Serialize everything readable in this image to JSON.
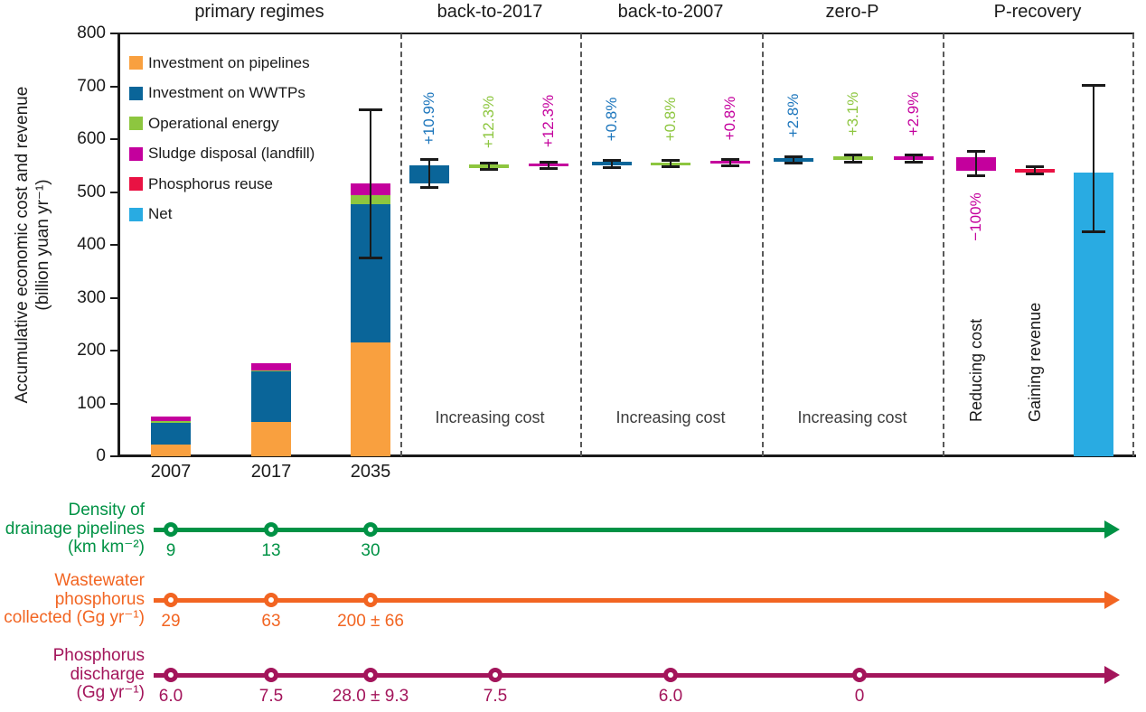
{
  "figure": {
    "y_axis": {
      "title_line1": "Accumulative economic cost and revenue",
      "title_line2": "(billion yuan yr⁻¹)",
      "tick_values": [
        0,
        100,
        200,
        300,
        400,
        500,
        600,
        700,
        800
      ],
      "range": [
        0,
        800
      ]
    },
    "legend": [
      {
        "label": "Investment on pipelines",
        "color": "#F9A03F"
      },
      {
        "label": "Investment on WWTPs",
        "color": "#0A6599"
      },
      {
        "label": "Operational energy",
        "color": "#8DC63F"
      },
      {
        "label": "Sludge disposal (landfill)",
        "color": "#C4009D"
      },
      {
        "label": "Phosphorus reuse",
        "color": "#E91243"
      },
      {
        "label": "Net",
        "color": "#29ABE2"
      }
    ],
    "text_color": "#1a1a1a",
    "note_color": "#3d3d3d",
    "separator_color": "#595959"
  },
  "chart_data": {
    "type": "bar",
    "unit": "billion yuan yr⁻¹",
    "panels": [
      "primary regimes",
      "back-to-2017",
      "back-to-2007",
      "zero-P",
      "P-recovery"
    ],
    "primary_regimes": {
      "title": "primary regimes",
      "categories": [
        "2007",
        "2017",
        "2035"
      ],
      "series": [
        {
          "name": "Investment on pipelines",
          "values": [
            22,
            65,
            215
          ]
        },
        {
          "name": "Investment on WWTPs",
          "values": [
            41,
            95,
            262
          ]
        },
        {
          "name": "Operational energy",
          "values": [
            3,
            2,
            17
          ]
        },
        {
          "name": "Sludge disposal (landfill)",
          "values": [
            10,
            14,
            22
          ]
        }
      ],
      "totals": [
        76,
        176,
        516
      ],
      "error_2035": [
        375,
        656
      ]
    },
    "scenarios": [
      {
        "title": "back-to-2017",
        "note": "Increasing cost",
        "bars": [
          {
            "series": "Investment on WWTPs",
            "change": "+10.9%",
            "label_color": "#1B75BC",
            "range": [
              517,
              551
            ],
            "error": [
              508,
              563
            ]
          },
          {
            "series": "Operational energy",
            "change": "+12.3%",
            "label_color": "#8DC63F",
            "range": [
              546,
              552
            ],
            "error": [
              542,
              556
            ]
          },
          {
            "series": "Sludge disposal (landfill)",
            "change": "+12.3%",
            "label_color": "#C4009D",
            "range": [
              548,
              554
            ],
            "error": [
              544,
              558
            ]
          }
        ]
      },
      {
        "title": "back-to-2007",
        "note": "Increasing cost",
        "bars": [
          {
            "series": "Investment on WWTPs",
            "change": "+0.8%",
            "label_color": "#1B75BC",
            "range": [
              550,
              557
            ],
            "error": [
              546,
              561
            ]
          },
          {
            "series": "Operational energy",
            "change": "+0.8%",
            "label_color": "#8DC63F",
            "range": [
              550,
              556
            ],
            "error": [
              547,
              560
            ]
          },
          {
            "series": "Sludge disposal (landfill)",
            "change": "+0.8%",
            "label_color": "#C4009D",
            "range": [
              553,
              559
            ],
            "error": [
              549,
              563
            ]
          }
        ]
      },
      {
        "title": "zero-P",
        "note": "Increasing cost",
        "bars": [
          {
            "series": "Investment on WWTPs",
            "change": "+2.8%",
            "label_color": "#1B75BC",
            "range": [
              557,
              564
            ],
            "error": [
              553,
              568
            ]
          },
          {
            "series": "Operational energy",
            "change": "+3.1%",
            "label_color": "#8DC63F",
            "range": [
              560,
              567
            ],
            "error": [
              556,
              571
            ]
          },
          {
            "series": "Sludge disposal (landfill)",
            "change": "+2.9%",
            "label_color": "#C4009D",
            "range": [
              560,
              567
            ],
            "error": [
              556,
              571
            ]
          }
        ]
      },
      {
        "title": "P-recovery",
        "bars": [
          {
            "series": "Sludge disposal (landfill)",
            "change": "−100%",
            "change_below": true,
            "label_color": "#C4009D",
            "bottom_note": "Reducing cost",
            "range": [
              540,
              566
            ],
            "error": [
              530,
              577
            ]
          },
          {
            "series": "Phosphorus reuse",
            "bottom_note": "Gaining revenue",
            "range": [
              537,
              544
            ],
            "error": [
              533,
              548
            ]
          },
          {
            "series": "Net",
            "range": [
              0,
              537
            ],
            "error": [
              424,
              702
            ]
          }
        ]
      }
    ],
    "timelines": [
      {
        "name": "density-of-drainage-pipelines",
        "label_lines": [
          "Density of",
          "drainage pipelines",
          "(km km⁻²)"
        ],
        "color": "#009245",
        "values": [
          "9",
          "13",
          "30"
        ]
      },
      {
        "name": "wastewater-phosphorus-collected",
        "label_lines": [
          "Wastewater",
          "phosphorus",
          "collected (Gg yr⁻¹)"
        ],
        "color": "#F26522",
        "values": [
          "29",
          "63",
          "200 ± 66"
        ]
      },
      {
        "name": "phosphorus-discharge",
        "label_lines": [
          "Phosphorus",
          "discharge",
          "(Gg yr⁻¹)"
        ],
        "color": "#A3155B",
        "values": [
          "6.0",
          "7.5",
          "28.0 ± 9.3",
          "7.5",
          "6.0",
          "0"
        ]
      }
    ]
  }
}
